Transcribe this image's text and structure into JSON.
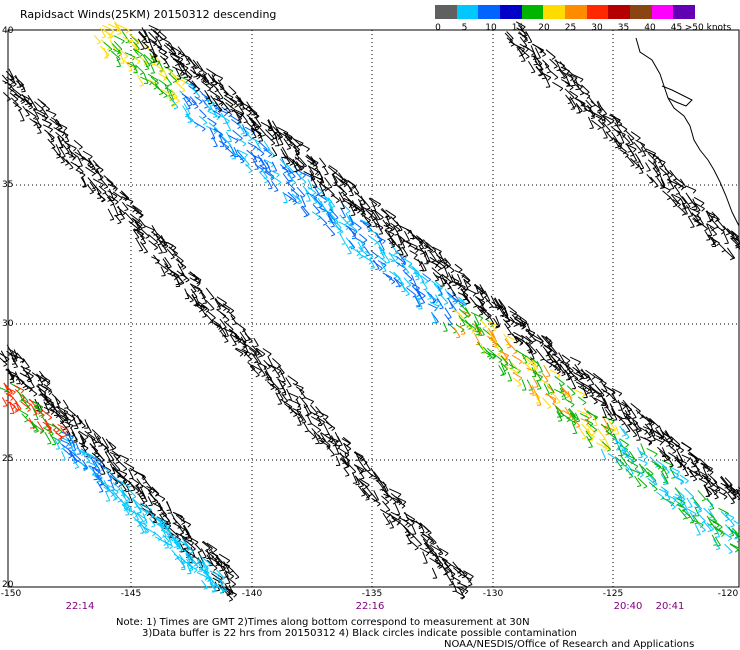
{
  "title": "Rapidsact Winds(25KM) 20150312 descending",
  "map": {
    "lat_labels": [
      "40",
      "35",
      "30",
      "25",
      "20"
    ],
    "lon_labels": [
      "-150",
      "-145",
      "-140",
      "-135",
      "-130",
      "-125",
      "-120"
    ],
    "time_labels": [
      "22:14",
      "22:16",
      "20:40",
      "20:41"
    ],
    "grid": "dotted"
  },
  "legend": {
    "labels": [
      "0",
      "5",
      "10",
      "15",
      "20",
      "25",
      "30",
      "35",
      "40",
      "45",
      ">50 knots"
    ],
    "colors": [
      "#606060",
      "#00c8ff",
      "#0064ff",
      "#0000c8",
      "#00b400",
      "#ffdc00",
      "#ff8c00",
      "#ff2800",
      "#b40000",
      "#8b4513",
      "#ff00ff",
      "#6400b4"
    ]
  },
  "notes": {
    "line1": "Note: 1) Times are GMT 2)Times along bottom correspond to measurement at 30N",
    "line2": "3)Data buffer is 22 hrs from 20150312 4) Black circles indicate possible contamination",
    "credit": "NOAA/NESDIS/Office of Research and Applications"
  }
}
